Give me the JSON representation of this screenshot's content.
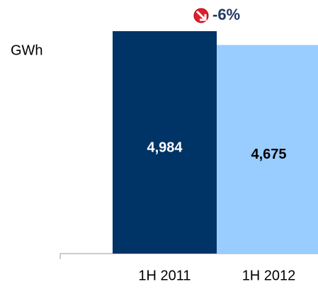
{
  "chart_data": {
    "type": "bar",
    "y_label": "GWh",
    "annotation": "-6%",
    "categories": [
      "1H 2011",
      "1H 2012"
    ],
    "values": [
      4984,
      4675
    ],
    "value_labels": [
      "4,984",
      "4,675"
    ],
    "colors": [
      "#003366",
      "#99ccff"
    ],
    "label_colors": [
      "#ffffff",
      "#000000"
    ],
    "ylim": [
      0,
      5000
    ]
  }
}
